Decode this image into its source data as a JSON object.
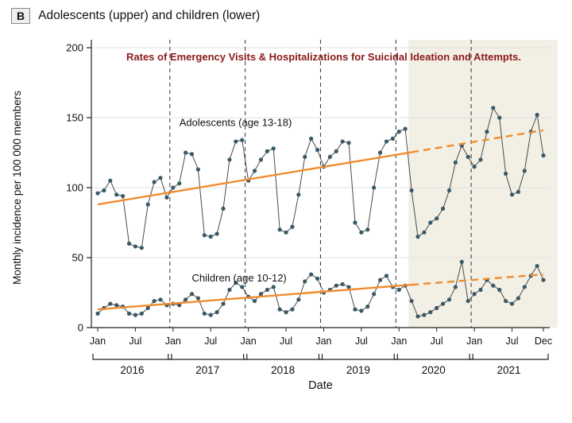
{
  "header": {
    "panel_label": "B",
    "title": "Adolescents (upper) and children (lower)"
  },
  "chart_data": {
    "type": "line",
    "title": "Rates of Emergency Visits & Hospitalizations for Suicidal Ideation and Attempts.",
    "xlabel": "Date",
    "ylabel": "Monthly incidence per 100 000 members",
    "ylim": [
      0,
      200
    ],
    "yticks": [
      0,
      50,
      100,
      150,
      200
    ],
    "years": [
      "2016",
      "2017",
      "2018",
      "2019",
      "2020",
      "2021"
    ],
    "month_tick_labels": [
      "Jan",
      "Jul",
      "Jan",
      "Jul",
      "Jan",
      "Jul",
      "Jan",
      "Jul",
      "Jan",
      "Jul",
      "Jan",
      "Jul",
      "Dec"
    ],
    "month_tick_indices": [
      0,
      6,
      12,
      18,
      24,
      30,
      36,
      42,
      48,
      54,
      60,
      66,
      71
    ],
    "year_boundary_indices": [
      12,
      24,
      36,
      48,
      60
    ],
    "pandemic_shading_start_index": 50,
    "trend_solid_until_index": 50,
    "series": [
      {
        "name": "Adolescents (age 13-18)",
        "values": [
          96,
          98,
          105,
          95,
          94,
          60,
          58,
          57,
          88,
          104,
          107,
          93,
          100,
          103,
          125,
          124,
          113,
          66,
          65,
          67,
          85,
          120,
          133,
          134,
          105,
          112,
          120,
          126,
          128,
          70,
          68,
          72,
          95,
          122,
          135,
          127,
          115,
          122,
          126,
          133,
          132,
          75,
          68,
          70,
          100,
          125,
          133,
          135,
          140,
          142,
          98,
          65,
          68,
          75,
          78,
          85,
          98,
          118,
          130,
          122,
          115,
          120,
          140,
          157,
          150,
          110,
          95,
          97,
          112,
          140,
          152,
          123
        ]
      },
      {
        "name": "Children (age 10-12)",
        "values": [
          10,
          14,
          17,
          16,
          15,
          10,
          9,
          10,
          14,
          19,
          20,
          16,
          17,
          16,
          20,
          24,
          21,
          10,
          9,
          11,
          17,
          27,
          32,
          29,
          22,
          19,
          24,
          27,
          29,
          13,
          11,
          13,
          20,
          33,
          38,
          35,
          25,
          27,
          30,
          31,
          29,
          13,
          12,
          15,
          24,
          34,
          37,
          29,
          27,
          30,
          19,
          8,
          9,
          11,
          14,
          17,
          20,
          29,
          47,
          19,
          24,
          27,
          34,
          30,
          27,
          19,
          17,
          21,
          29,
          37,
          44,
          34
        ]
      }
    ],
    "trend_lines": [
      {
        "series": "Adolescents (age 13-18)",
        "start_value": 88,
        "end_value": 141
      },
      {
        "series": "Children (age 10-12)",
        "start_value": 13,
        "end_value": 38
      }
    ],
    "colors": {
      "points": "#3a5866",
      "line": "#4a4a4a",
      "trend": "#f08c2e",
      "shading": "#f2f0e5",
      "title": "#8b1a1a",
      "grid": "#e0e0e0",
      "axis": "#222222",
      "text": "#111111"
    },
    "legend_position": "none",
    "grid": "horizontal"
  }
}
